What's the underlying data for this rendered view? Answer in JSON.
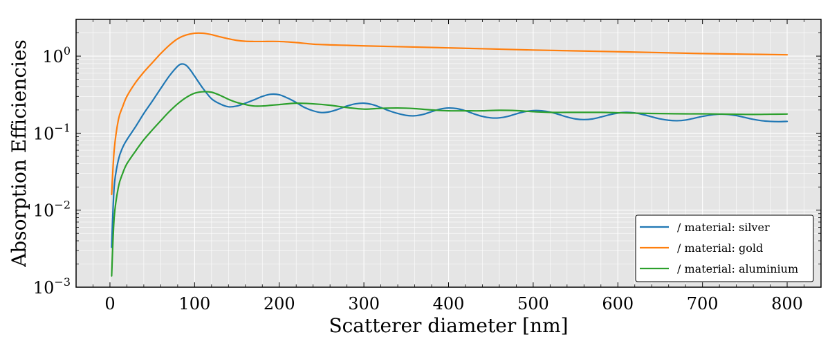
{
  "chart_data": {
    "type": "line",
    "xlabel": "Scatterer diameter [nm]",
    "ylabel": "Absorption Efficiencies",
    "xlim": [
      -40,
      840
    ],
    "ylim": [
      0.001,
      3
    ],
    "yscale": "log",
    "grid": true,
    "legend_placement": "lower-right",
    "x_ticks": [
      0,
      100,
      200,
      300,
      400,
      500,
      600,
      700,
      800
    ],
    "x_tick_labels": [
      "0",
      "100",
      "200",
      "300",
      "400",
      "500",
      "600",
      "700",
      "800"
    ],
    "y_ticks": [
      0.001,
      0.01,
      0.1,
      1
    ],
    "y_tick_labels": [
      {
        "base": "10",
        "exp": "−3"
      },
      {
        "base": "10",
        "exp": "−2"
      },
      {
        "base": "10",
        "exp": "−1"
      },
      {
        "base": "10",
        "exp": "0"
      }
    ],
    "series": [
      {
        "name": "/ material: silver",
        "color": "#1f77b4",
        "x": [
          2,
          5,
          10,
          15,
          20,
          30,
          40,
          50,
          60,
          70,
          80,
          85,
          90,
          95,
          100,
          110,
          120,
          130,
          140,
          150,
          160,
          170,
          180,
          190,
          200,
          210,
          220,
          230,
          240,
          250,
          260,
          270,
          280,
          290,
          300,
          310,
          320,
          330,
          340,
          350,
          360,
          370,
          380,
          390,
          400,
          410,
          420,
          430,
          440,
          450,
          460,
          470,
          480,
          490,
          500,
          510,
          520,
          530,
          540,
          550,
          560,
          570,
          580,
          590,
          600,
          610,
          620,
          630,
          640,
          650,
          660,
          670,
          680,
          690,
          700,
          710,
          720,
          730,
          740,
          750,
          760,
          770,
          780,
          790,
          800
        ],
        "y": [
          0.0033,
          0.02,
          0.045,
          0.065,
          0.082,
          0.12,
          0.18,
          0.26,
          0.38,
          0.55,
          0.74,
          0.79,
          0.76,
          0.66,
          0.55,
          0.38,
          0.28,
          0.24,
          0.22,
          0.225,
          0.245,
          0.27,
          0.3,
          0.32,
          0.315,
          0.285,
          0.25,
          0.215,
          0.195,
          0.185,
          0.19,
          0.205,
          0.225,
          0.24,
          0.245,
          0.235,
          0.215,
          0.195,
          0.18,
          0.17,
          0.168,
          0.175,
          0.19,
          0.205,
          0.212,
          0.208,
          0.195,
          0.178,
          0.165,
          0.158,
          0.158,
          0.165,
          0.178,
          0.19,
          0.196,
          0.195,
          0.188,
          0.175,
          0.162,
          0.153,
          0.15,
          0.153,
          0.162,
          0.173,
          0.182,
          0.186,
          0.183,
          0.174,
          0.163,
          0.153,
          0.147,
          0.145,
          0.148,
          0.156,
          0.165,
          0.172,
          0.176,
          0.175,
          0.169,
          0.16,
          0.151,
          0.145,
          0.142,
          0.141,
          0.142
        ]
      },
      {
        "name": "/ material: gold",
        "color": "#ff7f0e",
        "x": [
          2,
          5,
          10,
          15,
          20,
          30,
          40,
          50,
          60,
          70,
          80,
          90,
          100,
          110,
          120,
          130,
          140,
          150,
          160,
          170,
          180,
          200,
          220,
          240,
          260,
          280,
          300,
          350,
          400,
          450,
          500,
          550,
          600,
          650,
          700,
          750,
          800
        ],
        "y": [
          0.016,
          0.06,
          0.15,
          0.22,
          0.3,
          0.45,
          0.62,
          0.82,
          1.08,
          1.38,
          1.68,
          1.88,
          1.98,
          1.98,
          1.9,
          1.78,
          1.68,
          1.6,
          1.56,
          1.55,
          1.55,
          1.55,
          1.5,
          1.43,
          1.4,
          1.38,
          1.36,
          1.32,
          1.28,
          1.24,
          1.2,
          1.17,
          1.14,
          1.11,
          1.08,
          1.06,
          1.04
        ]
      },
      {
        "name": "/ material: aluminium",
        "color": "#2ca02c",
        "x": [
          2,
          5,
          10,
          15,
          20,
          30,
          40,
          50,
          60,
          70,
          80,
          90,
          100,
          110,
          120,
          130,
          140,
          150,
          160,
          170,
          180,
          190,
          200,
          220,
          240,
          260,
          280,
          300,
          320,
          340,
          360,
          380,
          400,
          420,
          440,
          460,
          480,
          500,
          520,
          540,
          560,
          580,
          600,
          620,
          640,
          660,
          680,
          700,
          720,
          740,
          760,
          780,
          800
        ],
        "y": [
          0.0014,
          0.008,
          0.02,
          0.03,
          0.04,
          0.058,
          0.082,
          0.11,
          0.145,
          0.19,
          0.24,
          0.29,
          0.33,
          0.345,
          0.34,
          0.31,
          0.275,
          0.25,
          0.235,
          0.225,
          0.225,
          0.23,
          0.235,
          0.245,
          0.24,
          0.23,
          0.215,
          0.205,
          0.21,
          0.212,
          0.208,
          0.2,
          0.195,
          0.195,
          0.195,
          0.198,
          0.196,
          0.19,
          0.186,
          0.186,
          0.186,
          0.186,
          0.184,
          0.182,
          0.18,
          0.179,
          0.178,
          0.178,
          0.177,
          0.176,
          0.175,
          0.176,
          0.177
        ]
      }
    ]
  }
}
